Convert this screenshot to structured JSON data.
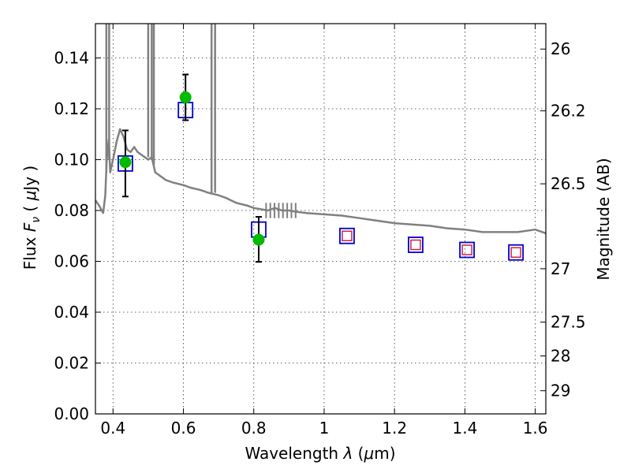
{
  "chart_data": {
    "type": "scatter",
    "title": "",
    "xlabel": "Wavelength  λ (μm)",
    "ylabel": "Flux  F_ν  ( μJy )",
    "ylabel_right": "Magnitude (AB)",
    "xlim": [
      0.35,
      1.63
    ],
    "ylim": [
      0.0,
      0.1535
    ],
    "grid": true,
    "grid_style": "dotted",
    "xticks": [
      0.4,
      0.6,
      0.8,
      1.0,
      1.2,
      1.4,
      1.6
    ],
    "xtick_labels": [
      "0.4",
      "0.6",
      "0.8",
      "1",
      "1.2",
      "1.4",
      "1.6"
    ],
    "yticks": [
      0.0,
      0.02,
      0.04,
      0.06,
      0.08,
      0.1,
      0.12,
      0.14
    ],
    "ytick_labels": [
      "0.00",
      "0.02",
      "0.04",
      "0.06",
      "0.08",
      "0.10",
      "0.12",
      "0.14"
    ],
    "right_ticks": [
      {
        "label": "26",
        "flux": 0.1435
      },
      {
        "label": "26.2",
        "flux": 0.1192
      },
      {
        "label": "26.5",
        "flux": 0.0905
      },
      {
        "label": "27",
        "flux": 0.0571
      },
      {
        "label": "27.5",
        "flux": 0.0361
      },
      {
        "label": "28",
        "flux": 0.0228
      },
      {
        "label": "29",
        "flux": 0.0091
      }
    ],
    "series": [
      {
        "kind": "spectrum",
        "color": "#808080",
        "x": [
          0.35,
          0.36,
          0.372,
          0.378,
          0.382,
          0.388,
          0.392,
          0.4,
          0.41,
          0.42,
          0.43,
          0.44,
          0.45,
          0.46,
          0.47,
          0.48,
          0.49,
          0.5,
          0.51,
          0.52,
          0.53,
          0.55,
          0.57,
          0.6,
          0.62,
          0.65,
          0.67,
          0.7,
          0.72,
          0.75,
          0.78,
          0.8,
          0.82,
          0.84,
          0.86,
          0.88,
          0.9,
          0.92,
          0.95,
          1.0,
          1.05,
          1.1,
          1.15,
          1.2,
          1.25,
          1.3,
          1.35,
          1.4,
          1.45,
          1.5,
          1.55,
          1.6,
          1.63
        ],
        "y": [
          0.084,
          0.082,
          0.079,
          0.086,
          0.1,
          0.108,
          0.095,
          0.1,
          0.107,
          0.112,
          0.109,
          0.104,
          0.103,
          0.105,
          0.103,
          0.102,
          0.101,
          0.1,
          0.101,
          0.095,
          0.094,
          0.092,
          0.091,
          0.09,
          0.089,
          0.088,
          0.087,
          0.086,
          0.085,
          0.083,
          0.082,
          0.081,
          0.0805,
          0.08,
          0.081,
          0.08,
          0.08,
          0.0795,
          0.079,
          0.0785,
          0.078,
          0.077,
          0.076,
          0.075,
          0.0745,
          0.074,
          0.073,
          0.0725,
          0.0715,
          0.0715,
          0.0715,
          0.0725,
          0.071
        ]
      },
      {
        "kind": "model-photometry",
        "marker": "square",
        "color": "#0000cc",
        "x": [
          0.435,
          0.606,
          0.814,
          1.065,
          1.26,
          1.406,
          1.545
        ],
        "y": [
          0.0985,
          0.1195,
          0.0725,
          0.07,
          0.0665,
          0.0645,
          0.0635
        ]
      },
      {
        "kind": "nir-photometry",
        "marker": "square",
        "color": "#cc2244",
        "x": [
          1.065,
          1.26,
          1.406,
          1.545
        ],
        "y": [
          0.07,
          0.0665,
          0.0645,
          0.0635
        ]
      },
      {
        "kind": "observed-photometry",
        "marker": "circle",
        "color": "#00bb00",
        "x": [
          0.435,
          0.606,
          0.814
        ],
        "y": [
          0.099,
          0.1245,
          0.0685
        ],
        "yerr_low": [
          0.0855,
          0.1155,
          0.0598
        ],
        "yerr_high": [
          0.1115,
          0.1335,
          0.0775
        ]
      }
    ],
    "emission_spikes": [
      {
        "x": 0.381,
        "y_base": 0.095
      },
      {
        "x": 0.389,
        "y_base": 0.1
      },
      {
        "x": 0.5,
        "y_base": 0.101
      },
      {
        "x": 0.51,
        "y_base": 0.1
      },
      {
        "x": 0.516,
        "y_base": 0.098
      },
      {
        "x": 0.68,
        "y_base": 0.087
      },
      {
        "x": 0.69,
        "y_base": 0.087
      }
    ]
  }
}
